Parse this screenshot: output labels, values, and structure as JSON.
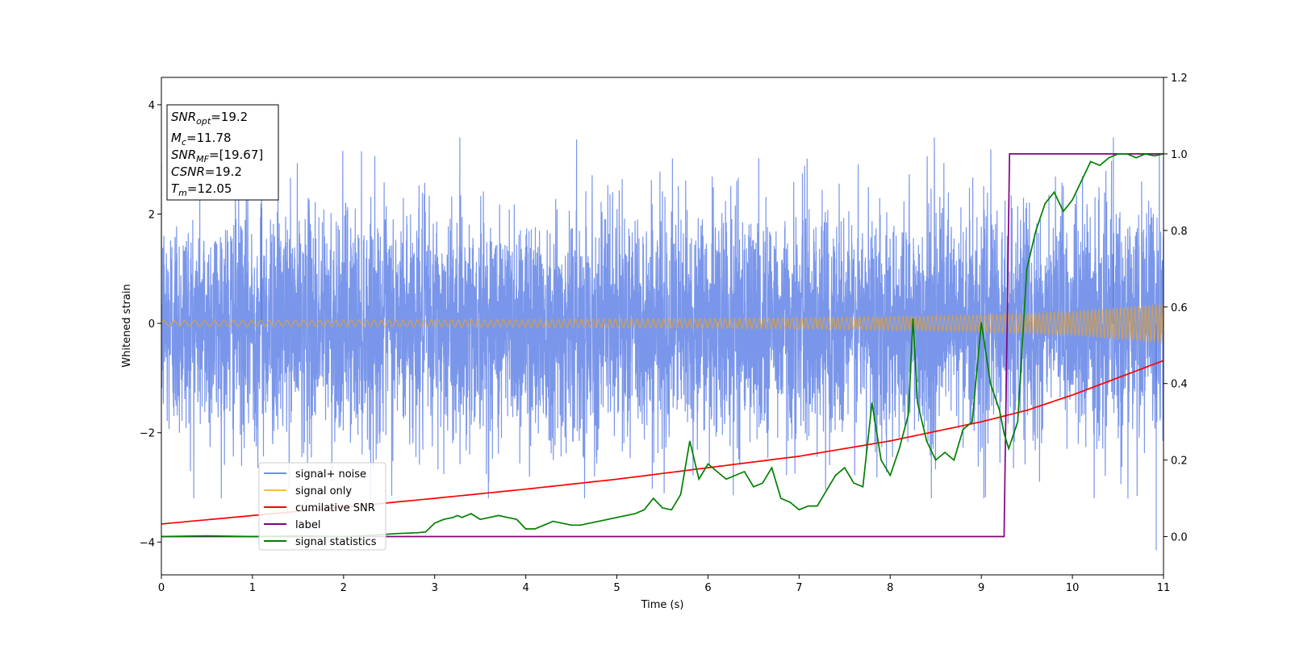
{
  "chart_data": {
    "type": "line",
    "xlabel": "Time (s)",
    "ylabel": "Whitened strain",
    "xlim": [
      0,
      11
    ],
    "ylim": [
      -4.6,
      4.5
    ],
    "y2lim": [
      -0.1,
      1.2
    ],
    "x_ticks": [
      "0",
      "1",
      "2",
      "3",
      "4",
      "5",
      "6",
      "7",
      "8",
      "9",
      "10",
      "11"
    ],
    "y_ticks": [
      "−4",
      "−2",
      "0",
      "2",
      "4"
    ],
    "y2_ticks": [
      "0.0",
      "0.2",
      "0.4",
      "0.6",
      "0.8",
      "1.0",
      "1.2"
    ],
    "legend_position": "lower-left",
    "annotation": {
      "lines": [
        {
          "sym": "SNR",
          "sub": "opt",
          "value": "=19.2"
        },
        {
          "sym": "M",
          "sub": "c",
          "value": "=11.78"
        },
        {
          "sym": "SNR",
          "sub": "MF",
          "value": "=[19.67]"
        },
        {
          "sym": "CSNR",
          "sub": "",
          "value": "=19.2"
        },
        {
          "sym": "T",
          "sub": "m",
          "value": "=12.05"
        }
      ]
    },
    "series": [
      {
        "name": "signal+ noise",
        "color": "#4169e1",
        "axis": "left",
        "noise_sigma": 1.05,
        "typical_range": [
          -3.2,
          3.4
        ],
        "extremes": [
          [
            10.92,
            -4.15
          ],
          [
            10.45,
            3.4
          ],
          [
            1.1,
            3.4
          ]
        ]
      },
      {
        "name": "signal only",
        "color": "#ffa500",
        "axis": "left",
        "amplitude_envelope": {
          "x": [
            0,
            4,
            7,
            9,
            10,
            11
          ],
          "y": [
            0.05,
            0.07,
            0.1,
            0.15,
            0.22,
            0.36
          ]
        }
      },
      {
        "name": "cumilative SNR",
        "color": "#ff0000",
        "axis": "right",
        "x": [
          0,
          1,
          2,
          3,
          4,
          5,
          6,
          7,
          8,
          9,
          9.5,
          10,
          10.5,
          11
        ],
        "y": [
          0.033,
          0.055,
          0.077,
          0.1,
          0.124,
          0.15,
          0.18,
          0.21,
          0.25,
          0.3,
          0.33,
          0.37,
          0.415,
          0.46
        ]
      },
      {
        "name": "label",
        "color": "#800080",
        "axis": "right",
        "x": [
          0,
          9.25,
          9.31,
          11
        ],
        "y": [
          0.0,
          0.0,
          1.0,
          1.0
        ]
      },
      {
        "name": "signal statistics",
        "color": "#008000",
        "axis": "right",
        "x": [
          0,
          0.5,
          1,
          1.5,
          2,
          2.4,
          2.6,
          2.8,
          2.9,
          3.0,
          3.1,
          3.2,
          3.25,
          3.3,
          3.4,
          3.5,
          3.6,
          3.7,
          3.8,
          3.9,
          4.0,
          4.1,
          4.2,
          4.3,
          4.4,
          4.5,
          4.6,
          4.7,
          4.8,
          4.9,
          5.0,
          5.1,
          5.2,
          5.3,
          5.4,
          5.5,
          5.6,
          5.7,
          5.8,
          5.9,
          6.0,
          6.1,
          6.2,
          6.3,
          6.4,
          6.5,
          6.6,
          6.7,
          6.8,
          6.9,
          7.0,
          7.1,
          7.2,
          7.3,
          7.4,
          7.5,
          7.6,
          7.7,
          7.8,
          7.9,
          8.0,
          8.1,
          8.2,
          8.25,
          8.3,
          8.4,
          8.5,
          8.6,
          8.7,
          8.8,
          8.9,
          9.0,
          9.1,
          9.2,
          9.25,
          9.3,
          9.4,
          9.5,
          9.6,
          9.7,
          9.8,
          9.9,
          10.0,
          10.1,
          10.2,
          10.3,
          10.4,
          10.5,
          10.6,
          10.7,
          10.8,
          10.9,
          11.0
        ],
        "y": [
          0.0,
          0.002,
          0.0,
          0.002,
          0.0,
          0.005,
          0.008,
          0.01,
          0.012,
          0.035,
          0.045,
          0.05,
          0.055,
          0.05,
          0.06,
          0.045,
          0.05,
          0.055,
          0.05,
          0.045,
          0.02,
          0.02,
          0.03,
          0.04,
          0.035,
          0.03,
          0.03,
          0.035,
          0.04,
          0.045,
          0.05,
          0.055,
          0.06,
          0.07,
          0.1,
          0.075,
          0.07,
          0.11,
          0.25,
          0.15,
          0.19,
          0.17,
          0.15,
          0.16,
          0.17,
          0.13,
          0.14,
          0.18,
          0.1,
          0.09,
          0.07,
          0.08,
          0.08,
          0.12,
          0.16,
          0.18,
          0.14,
          0.13,
          0.35,
          0.2,
          0.16,
          0.23,
          0.32,
          0.57,
          0.35,
          0.25,
          0.2,
          0.22,
          0.2,
          0.28,
          0.3,
          0.56,
          0.4,
          0.33,
          0.27,
          0.23,
          0.3,
          0.7,
          0.8,
          0.87,
          0.9,
          0.85,
          0.88,
          0.93,
          0.98,
          0.97,
          0.99,
          1.0,
          1.0,
          0.99,
          1.0,
          0.995,
          1.0
        ]
      }
    ]
  }
}
